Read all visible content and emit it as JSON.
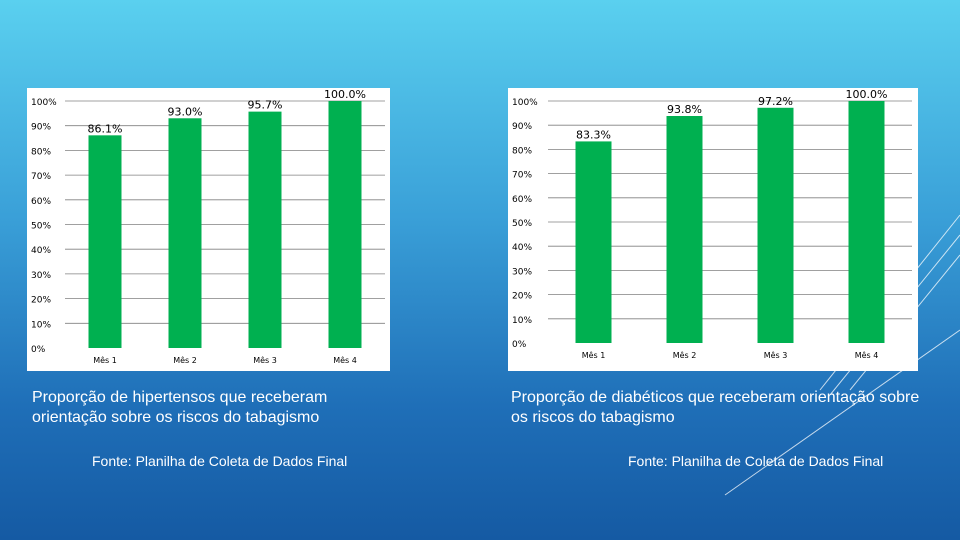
{
  "charts": [
    {
      "caption": "Proporção de hipertensos que receberam orientação sobre os riscos do tabagismo",
      "source": "Fonte: Planilha de Coleta de Dados Final"
    },
    {
      "caption": "Proporção de diabéticos que receberam orientação sobre os riscos do tabagismo",
      "source": "Fonte: Planilha de Coleta de Dados Final"
    }
  ],
  "colors": {
    "bar": "#00b050",
    "grid": "#808080",
    "text": "#000000"
  },
  "chart_data": [
    {
      "type": "bar",
      "categories": [
        "Mês 1",
        "Mês 2",
        "Mês 3",
        "Mês 4"
      ],
      "values": [
        86.1,
        93.0,
        95.7,
        100.0
      ],
      "data_labels": [
        "86.1%",
        "93.0%",
        "95.7%",
        "100.0%"
      ],
      "y_ticks": [
        "0%",
        "10%",
        "20%",
        "30%",
        "40%",
        "50%",
        "60%",
        "70%",
        "80%",
        "90%",
        "100%"
      ],
      "ylim": [
        0,
        100
      ],
      "grid": true,
      "legend": "none"
    },
    {
      "type": "bar",
      "categories": [
        "Mês 1",
        "Mês 2",
        "Mês 3",
        "Mês 4"
      ],
      "values": [
        83.3,
        93.8,
        97.2,
        100.0
      ],
      "data_labels": [
        "83.3%",
        "93.8%",
        "97.2%",
        "100.0%"
      ],
      "y_ticks": [
        "0%",
        "10%",
        "20%",
        "30%",
        "40%",
        "50%",
        "60%",
        "70%",
        "80%",
        "90%",
        "100%"
      ],
      "ylim": [
        0,
        100
      ],
      "grid": true,
      "legend": "none"
    }
  ]
}
